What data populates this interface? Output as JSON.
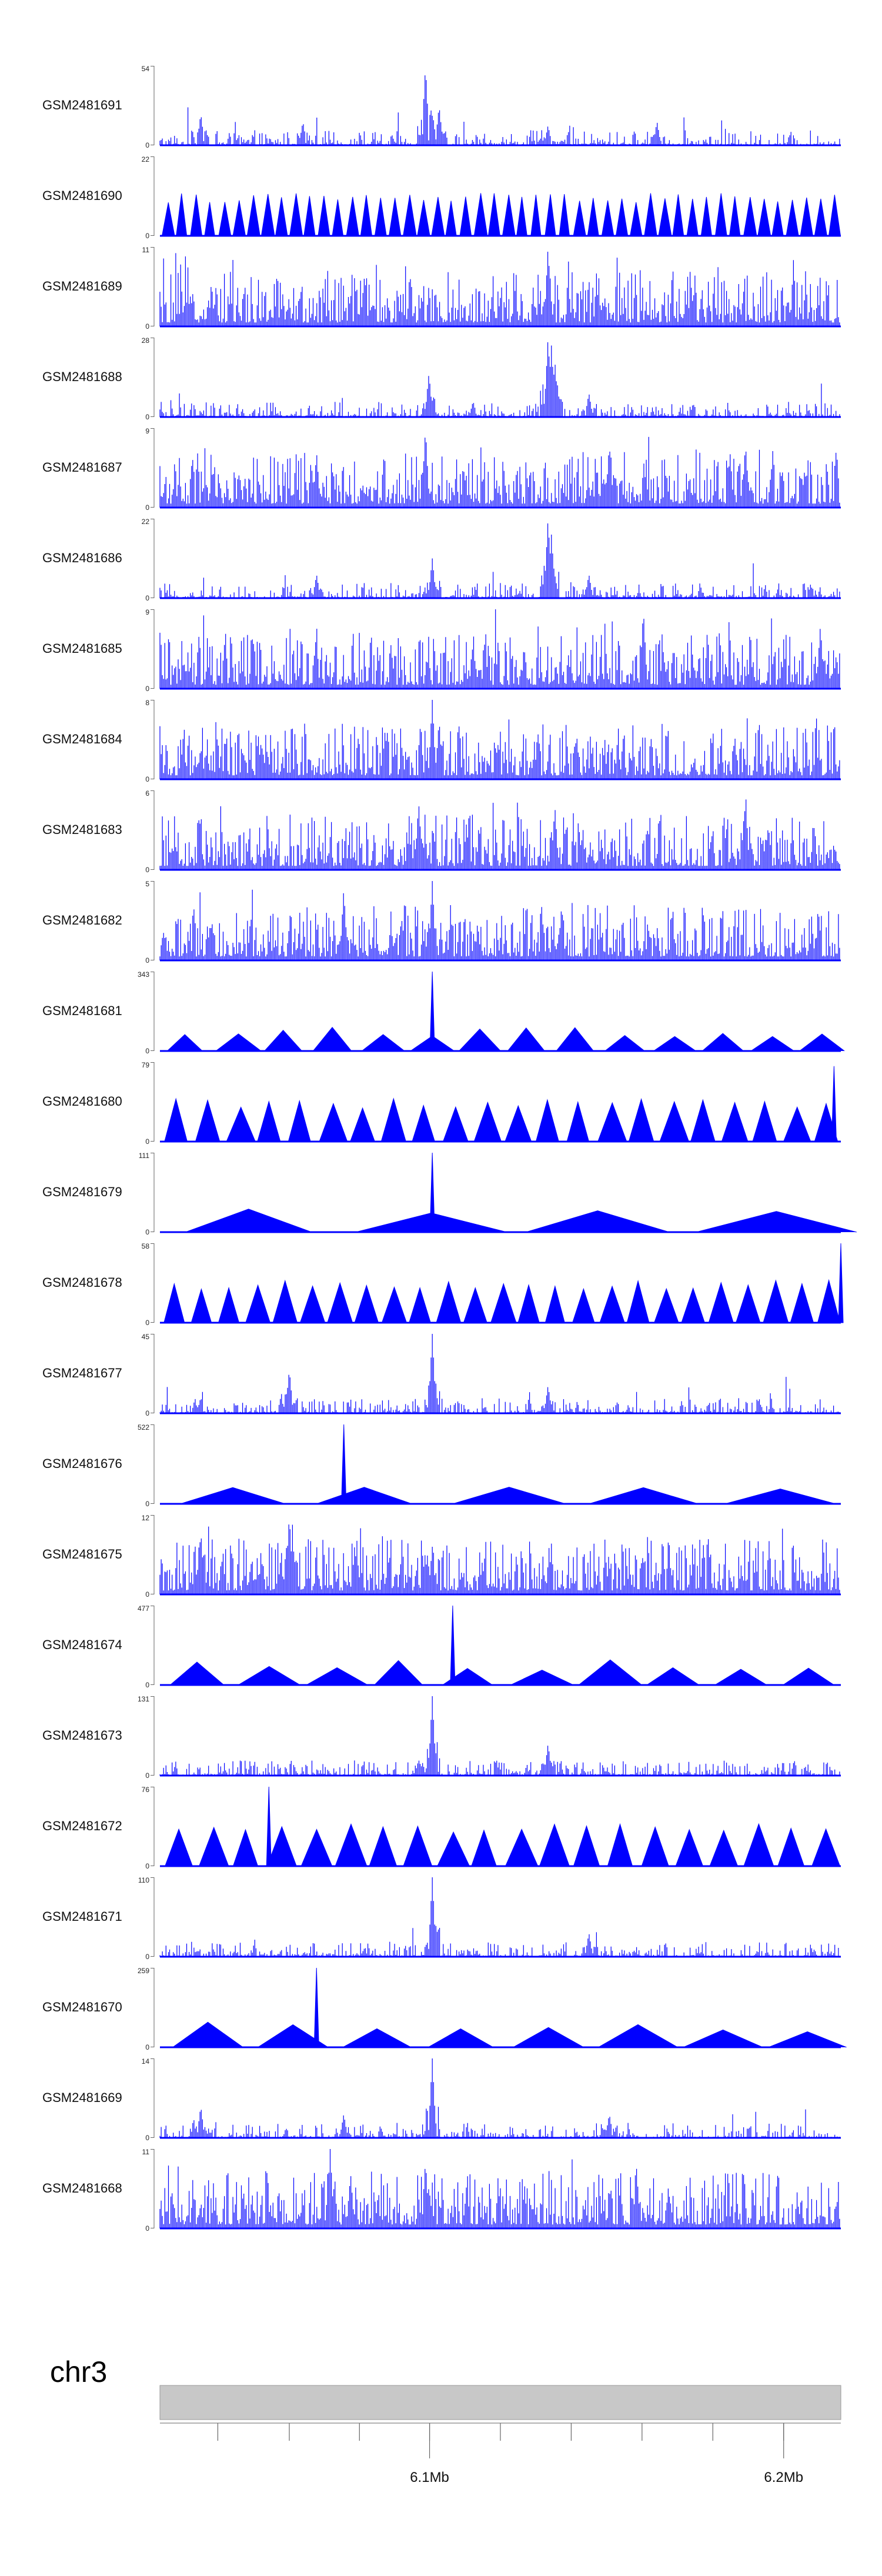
{
  "colors": {
    "signal": "#0000ff",
    "ideogram": "#c8c8c8",
    "axis": "#666666"
  },
  "chart_data": {
    "type": "genome-browser-tracks",
    "chromosome": "chr3",
    "genome_axis": {
      "ticks_labeled": [
        "6.1Mb",
        "6.2Mb"
      ]
    },
    "tracks": [
      {
        "name": "GSM2481691",
        "ymax": "54",
        "ymin": "0",
        "shape": "spiky",
        "peaks": [
          [
            0.06,
            0.4
          ],
          [
            0.21,
            0.3
          ],
          [
            0.39,
            1.0
          ],
          [
            0.41,
            0.5
          ],
          [
            0.57,
            0.25
          ],
          [
            0.73,
            0.3
          ]
        ]
      },
      {
        "name": "GSM2481690",
        "ymax": "22",
        "ymin": "0",
        "shape": "triangles",
        "count": 48
      },
      {
        "name": "GSM2481689",
        "ymax": "11",
        "ymin": "0",
        "shape": "dense",
        "peaks": [
          [
            0.57,
            1.0
          ],
          [
            0.3,
            0.6
          ],
          [
            0.78,
            0.5
          ]
        ]
      },
      {
        "name": "GSM2481688",
        "ymax": "28",
        "ymin": "0",
        "shape": "spiky",
        "peaks": [
          [
            0.395,
            0.55
          ],
          [
            0.57,
            1.0
          ],
          [
            0.575,
            0.9
          ],
          [
            0.58,
            0.7
          ],
          [
            0.63,
            0.3
          ],
          [
            0.46,
            0.2
          ]
        ]
      },
      {
        "name": "GSM2481687",
        "ymax": "9",
        "ymin": "0",
        "shape": "dense",
        "peaks": [
          [
            0.39,
            1.0
          ],
          [
            0.23,
            0.7
          ],
          [
            0.66,
            0.8
          ],
          [
            0.86,
            0.8
          ]
        ]
      },
      {
        "name": "GSM2481686",
        "ymax": "22",
        "ymin": "0",
        "shape": "spiky",
        "peaks": [
          [
            0.57,
            1.0
          ],
          [
            0.575,
            0.8
          ],
          [
            0.4,
            0.5
          ],
          [
            0.23,
            0.3
          ],
          [
            0.63,
            0.3
          ]
        ]
      },
      {
        "name": "GSM2481685",
        "ymax": "9",
        "ymin": "0",
        "shape": "dense",
        "peaks": [
          [
            0.71,
            1.0
          ],
          [
            0.97,
            0.8
          ],
          [
            0.46,
            0.6
          ]
        ]
      },
      {
        "name": "GSM2481684",
        "ymax": "8",
        "ymin": "0",
        "shape": "dense",
        "peaks": [
          [
            0.4,
            1.0
          ],
          [
            0.41,
            0.75
          ],
          [
            0.06,
            0.4
          ],
          [
            0.55,
            0.35
          ]
        ]
      },
      {
        "name": "GSM2481683",
        "ymax": "6",
        "ymin": "0",
        "shape": "dense",
        "peaks": [
          [
            0.38,
            0.85
          ],
          [
            0.58,
            0.8
          ],
          [
            0.86,
            0.9
          ]
        ]
      },
      {
        "name": "GSM2481682",
        "ymax": "5",
        "ymin": "0",
        "shape": "dense",
        "peaks": [
          [
            0.4,
            1.0
          ],
          [
            0.27,
            0.9
          ],
          [
            0.59,
            0.7
          ]
        ]
      },
      {
        "name": "GSM2481681",
        "ymax": "343",
        "ymin": "0",
        "shape": "triangles",
        "count": 14,
        "spike": [
          0.4,
          1.0
        ]
      },
      {
        "name": "GSM2481680",
        "ymax": "79",
        "ymin": "0",
        "shape": "triangles",
        "count": 22,
        "spike": [
          0.99,
          0.95
        ]
      },
      {
        "name": "GSM2481679",
        "ymax": "111",
        "ymin": "0",
        "shape": "triangles",
        "count": 4,
        "spike": [
          0.4,
          1.0
        ]
      },
      {
        "name": "GSM2481678",
        "ymax": "58",
        "ymin": "0",
        "shape": "triangles",
        "count": 25,
        "spike": [
          1.0,
          1.0
        ]
      },
      {
        "name": "GSM2481677",
        "ymax": "45",
        "ymin": "0",
        "shape": "spiky",
        "peaks": [
          [
            0.4,
            1.0
          ],
          [
            0.19,
            0.55
          ],
          [
            0.57,
            0.35
          ],
          [
            0.06,
            0.2
          ]
        ]
      },
      {
        "name": "GSM2481676",
        "ymax": "522",
        "ymin": "0",
        "shape": "triangles",
        "count": 5,
        "spike": [
          0.27,
          1.0
        ]
      },
      {
        "name": "GSM2481675",
        "ymax": "12",
        "ymin": "0",
        "shape": "dense",
        "peaks": [
          [
            0.19,
            1.0
          ],
          [
            0.06,
            0.8
          ],
          [
            0.4,
            0.6
          ]
        ]
      },
      {
        "name": "GSM2481674",
        "ymax": "477",
        "ymin": "0",
        "shape": "triangles",
        "count": 10,
        "spike": [
          0.43,
          1.0
        ]
      },
      {
        "name": "GSM2481673",
        "ymax": "131",
        "ymin": "0",
        "shape": "spiky",
        "peaks": [
          [
            0.4,
            1.0
          ],
          [
            0.57,
            0.4
          ],
          [
            0.38,
            0.2
          ]
        ]
      },
      {
        "name": "GSM2481672",
        "ymax": "76",
        "ymin": "0",
        "shape": "triangles",
        "count": 20,
        "spike": [
          0.16,
          1.0
        ]
      },
      {
        "name": "GSM2481671",
        "ymax": "110",
        "ymin": "0",
        "shape": "spiky",
        "peaks": [
          [
            0.4,
            1.0
          ],
          [
            0.63,
            0.3
          ],
          [
            0.3,
            0.1
          ]
        ]
      },
      {
        "name": "GSM2481670",
        "ymax": "259",
        "ymin": "0",
        "shape": "triangles",
        "count": 8,
        "spike": [
          0.23,
          1.0
        ]
      },
      {
        "name": "GSM2481669",
        "ymax": "14",
        "ymin": "0",
        "shape": "spiky",
        "peaks": [
          [
            0.4,
            1.0
          ],
          [
            0.06,
            0.4
          ],
          [
            0.27,
            0.3
          ],
          [
            0.66,
            0.3
          ]
        ]
      },
      {
        "name": "GSM2481668",
        "ymax": "11",
        "ymin": "0",
        "shape": "dense",
        "peaks": [
          [
            0.25,
            1.0
          ],
          [
            0.39,
            0.85
          ],
          [
            0.28,
            0.7
          ],
          [
            0.7,
            0.75
          ]
        ]
      }
    ]
  }
}
